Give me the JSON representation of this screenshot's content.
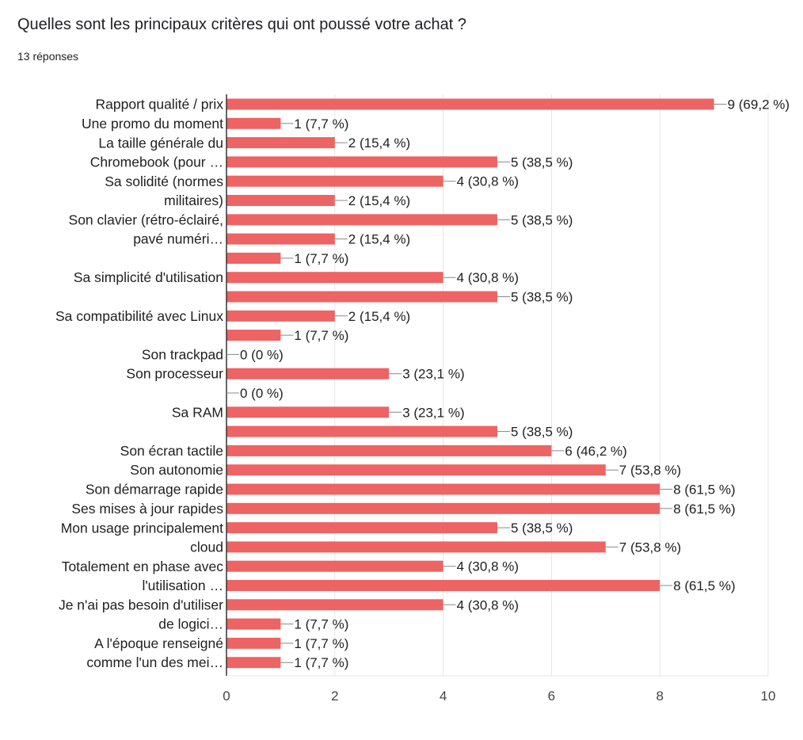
{
  "question": {
    "title": "Quelles sont les principaux critères qui ont poussé votre achat ?",
    "responses": "13 réponses"
  },
  "colors": {
    "bar": "#ee6363",
    "axis": "#333333",
    "grid": "#e6e6e6",
    "text": "#212121",
    "tick_text": "#444444"
  },
  "chart_data": {
    "type": "bar",
    "orientation": "horizontal",
    "title": "",
    "xlabel": "",
    "ylabel": "",
    "xlim": [
      0,
      10
    ],
    "xticks": [
      0,
      2,
      4,
      6,
      8,
      10
    ],
    "grid": true,
    "legend": "none",
    "values": [
      9,
      1,
      2,
      5,
      4,
      2,
      5,
      2,
      1,
      4,
      5,
      2,
      1,
      0,
      3,
      0,
      3,
      5,
      6,
      7,
      8,
      8,
      5,
      7,
      4,
      8,
      4,
      1,
      1,
      1
    ],
    "data_labels": [
      "9 (69,2 %)",
      "1 (7,7 %)",
      "2 (15,4 %)",
      "5 (38,5 %)",
      "4 (30,8 %)",
      "2 (15,4 %)",
      "5 (38,5 %)",
      "2 (15,4 %)",
      "1 (7,7 %)",
      "4 (30,8 %)",
      "5 (38,5 %)",
      "2 (15,4 %)",
      "1 (7,7 %)",
      "0 (0 %)",
      "3 (23,1 %)",
      "0 (0 %)",
      "3 (23,1 %)",
      "5 (38,5 %)",
      "6 (46,2 %)",
      "7 (53,8 %)",
      "8 (61,5 %)",
      "8 (61,5 %)",
      "5 (38,5 %)",
      "7 (53,8 %)",
      "4 (30,8 %)",
      "8 (61,5 %)",
      "4 (30,8 %)",
      "1 (7,7 %)",
      "1 (7,7 %)",
      "1 (7,7 %)"
    ],
    "category_labels": [
      {
        "lines": [
          "Rapport qualité / prix"
        ],
        "row": 0
      },
      {
        "lines": [
          "Une promo du moment"
        ],
        "row": 1
      },
      {
        "lines": [
          "La taille générale du",
          "Chromebook (pour …"
        ],
        "row": 2.5
      },
      {
        "lines": [
          "Sa solidité (normes",
          "militaires)"
        ],
        "row": 4.5
      },
      {
        "lines": [
          "Son clavier (rétro-éclairé,",
          "pavé numéri…"
        ],
        "row": 6.5
      },
      {
        "lines": [
          "Sa simplicité d'utilisation"
        ],
        "row": 9
      },
      {
        "lines": [
          "Sa compatibilité avec Linux"
        ],
        "row": 11
      },
      {
        "lines": [
          "Son trackpad"
        ],
        "row": 13
      },
      {
        "lines": [
          "Son processeur"
        ],
        "row": 14
      },
      {
        "lines": [
          "Sa RAM"
        ],
        "row": 16
      },
      {
        "lines": [
          "Son écran tactile"
        ],
        "row": 18
      },
      {
        "lines": [
          "Son autonomie"
        ],
        "row": 19
      },
      {
        "lines": [
          "Son démarrage rapide"
        ],
        "row": 20
      },
      {
        "lines": [
          "Ses mises à jour rapides"
        ],
        "row": 21
      },
      {
        "lines": [
          "Mon usage principalement",
          "cloud"
        ],
        "row": 22.5
      },
      {
        "lines": [
          "Totalement en phase avec",
          "l'utilisation …"
        ],
        "row": 24.5
      },
      {
        "lines": [
          "Je n'ai pas besoin d'utiliser",
          "de logici…"
        ],
        "row": 26.5
      },
      {
        "lines": [
          "A l'époque renseigné",
          "comme l'un des mei…"
        ],
        "row": 28.5
      }
    ]
  }
}
